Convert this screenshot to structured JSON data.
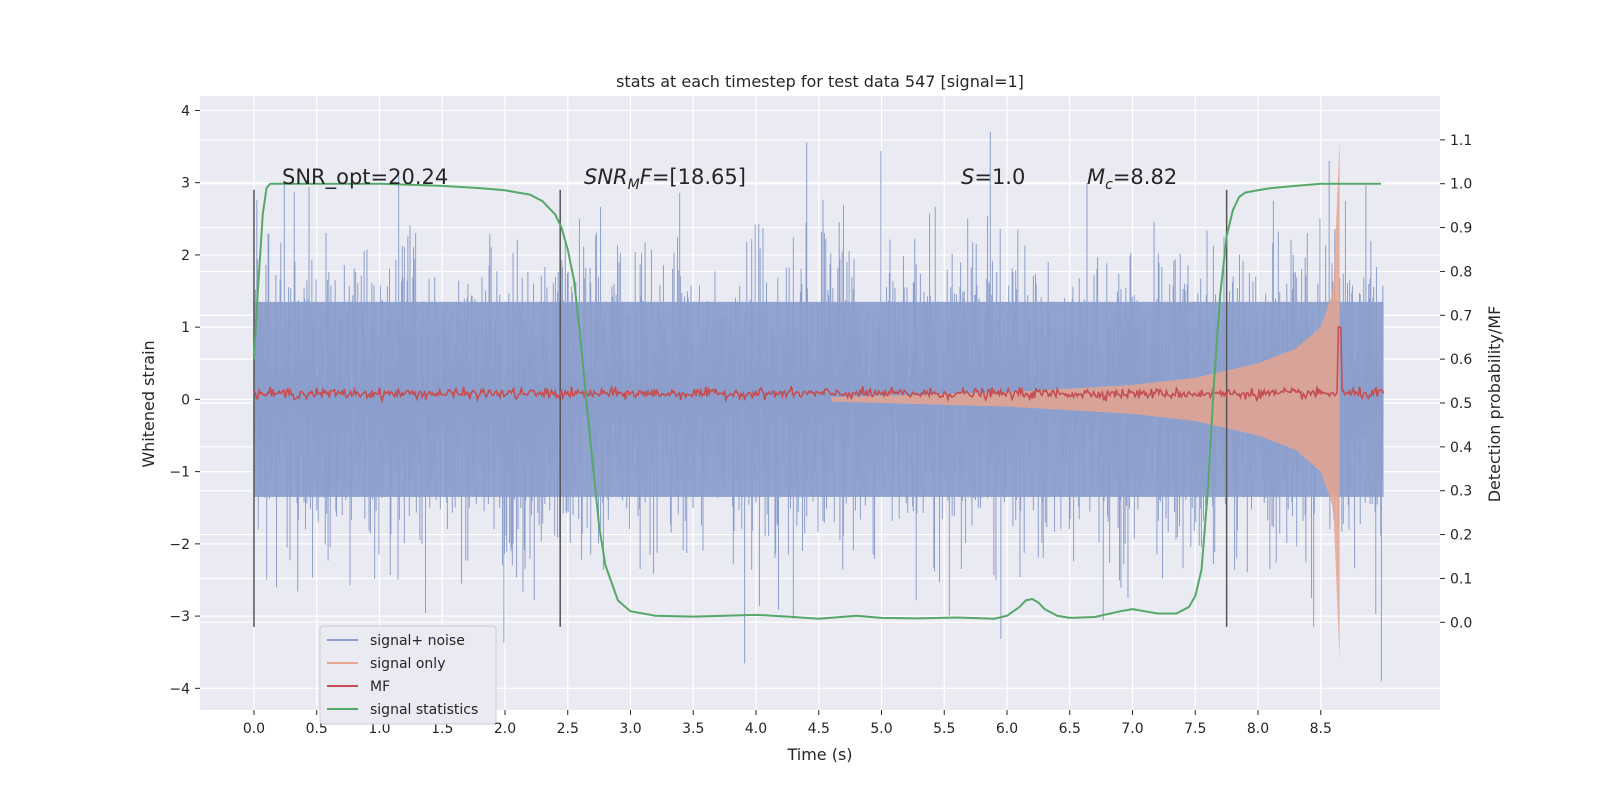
{
  "chart_data": {
    "type": "line",
    "title": "stats at each timestep for test data 547 [signal=1]",
    "xlabel": "Time (s)",
    "ylabel": "Whitened strain",
    "ylabel_right": "Detection probability/MF",
    "xlim": [
      -0.43,
      9.45
    ],
    "ylim": [
      -4.3,
      4.2
    ],
    "ylim_right": [
      -0.2,
      1.2
    ],
    "xticks": [
      "0.0",
      "0.5",
      "1.0",
      "1.5",
      "2.0",
      "2.5",
      "3.0",
      "3.5",
      "4.0",
      "4.5",
      "5.0",
      "5.5",
      "6.0",
      "6.5",
      "7.0",
      "7.5",
      "8.0",
      "8.5"
    ],
    "yticks": [
      "4",
      "3",
      "2",
      "1",
      "0",
      "−1",
      "−2",
      "−3",
      "−4"
    ],
    "yticks_right": [
      "1.1",
      "1.0",
      "0.9",
      "0.8",
      "0.7",
      "0.6",
      "0.5",
      "0.4",
      "0.3",
      "0.2",
      "0.1",
      "0.0"
    ],
    "grid": true,
    "legend_position": "lower-left",
    "annotations": {
      "snr_opt": "SNR_opt=20.24",
      "snr_mf_name": "SNR",
      "snr_mf_sub": "M",
      "snr_mf_f": "F",
      "snr_mf_val": "=[18.65]",
      "s_name": "S",
      "s_val": "=1.0",
      "mc_name": "M",
      "mc_sub": "c",
      "mc_val": "=8.82"
    },
    "vertical_markers": [
      0.0,
      2.44,
      7.75
    ],
    "marker_range": [
      -3.15,
      2.9
    ],
    "series": [
      {
        "name": "signal+ noise",
        "axis": "left",
        "color": "#8c9fcc",
        "style": "noise",
        "duration": 9.0,
        "amplitude_core": 1.35,
        "amplitude_peaks": [
          -4.0,
          3.75
        ]
      },
      {
        "name": "signal only",
        "axis": "left",
        "color": "#e5a591",
        "style": "chirp",
        "t_start": 4.6,
        "t_merge": 8.65,
        "envelope": {
          "t": [
            4.6,
            6.0,
            7.0,
            7.5,
            8.0,
            8.3,
            8.5,
            8.6,
            8.65
          ],
          "amp": [
            0.03,
            0.1,
            0.2,
            0.3,
            0.5,
            0.7,
            1.0,
            1.5,
            3.6
          ]
        }
      },
      {
        "name": "MF",
        "axis": "left",
        "color": "#c44e52",
        "style": "mf",
        "baseline": 0.08,
        "spike_t": 8.65,
        "spike_value": 1.0
      },
      {
        "name": "signal statistics",
        "axis": "right",
        "color": "#55a868",
        "style": "line",
        "x": [
          0.0,
          0.03,
          0.07,
          0.1,
          0.13,
          0.2,
          0.3,
          0.6,
          1.0,
          1.5,
          1.8,
          2.0,
          2.2,
          2.3,
          2.4,
          2.45,
          2.5,
          2.55,
          2.6,
          2.65,
          2.7,
          2.75,
          2.8,
          2.9,
          3.0,
          3.2,
          3.5,
          4.0,
          4.3,
          4.5,
          4.8,
          5.0,
          5.3,
          5.6,
          5.9,
          6.0,
          6.1,
          6.15,
          6.2,
          6.25,
          6.3,
          6.4,
          6.5,
          6.7,
          6.9,
          7.0,
          7.1,
          7.2,
          7.35,
          7.45,
          7.5,
          7.55,
          7.6,
          7.65,
          7.7,
          7.75,
          7.8,
          7.85,
          7.9,
          8.0,
          8.1,
          8.3,
          8.5,
          8.7,
          8.98
        ],
        "y": [
          0.6,
          0.75,
          0.93,
          0.99,
          1.0,
          1.0,
          1.0,
          1.0,
          1.0,
          0.995,
          0.99,
          0.985,
          0.975,
          0.96,
          0.93,
          0.9,
          0.85,
          0.78,
          0.65,
          0.5,
          0.36,
          0.22,
          0.13,
          0.05,
          0.025,
          0.015,
          0.013,
          0.017,
          0.012,
          0.008,
          0.015,
          0.01,
          0.009,
          0.011,
          0.008,
          0.015,
          0.035,
          0.05,
          0.053,
          0.045,
          0.03,
          0.015,
          0.01,
          0.012,
          0.025,
          0.03,
          0.025,
          0.02,
          0.02,
          0.035,
          0.06,
          0.12,
          0.3,
          0.55,
          0.75,
          0.88,
          0.94,
          0.97,
          0.98,
          0.985,
          0.99,
          0.995,
          1.0,
          1.0,
          1.0
        ]
      }
    ]
  }
}
